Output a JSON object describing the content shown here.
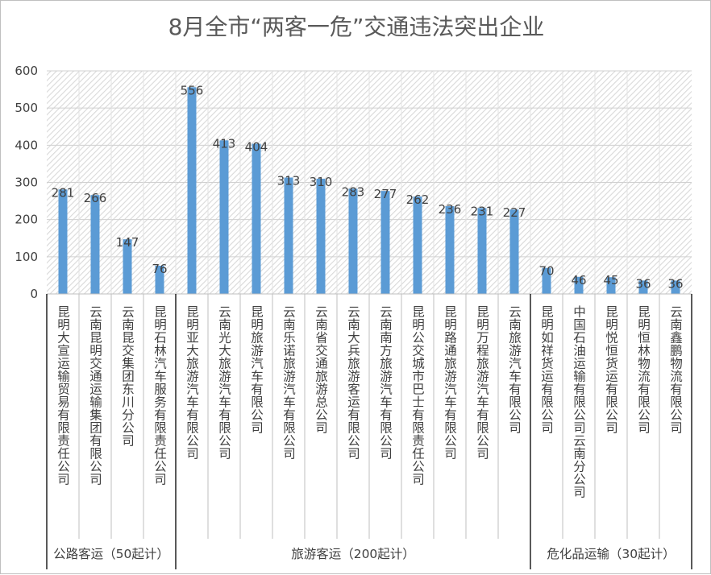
{
  "chart_data": {
    "type": "bar",
    "title": "8月全市“两客一危”交通违法突出企业",
    "xlabel": "",
    "ylabel": "",
    "ylim": [
      0,
      600
    ],
    "yticks": [
      0,
      100,
      200,
      300,
      400,
      500,
      600
    ],
    "grid": true,
    "legend": "none",
    "colors": {
      "bar": "#5b9bd5",
      "plot_bg_pattern": "#d9d9d9",
      "text": "#404040",
      "title": "#595959"
    },
    "categories": [
      "昆明大宣运输贸易有限责任公司",
      "云南昆明交通运输集团有限公司",
      "云南昆交集团东川分公司",
      "昆明石林汽车服务有限责任公司",
      "昆明亚大旅游汽车有限公司",
      "云南光大旅游汽车有限公司",
      "昆明旅游汽车有限公司",
      "云南乐诺旅游汽车有限公司",
      "云南省交通旅游总公司",
      "云南大兵旅游客运有限公司",
      "云南南方旅游汽车有限公司",
      "昆明公交城市巴士有限责任公司",
      "昆明路通旅游汽车有限公司",
      "昆明万程旅游汽车有限公司",
      "云南旅游汽车有限公司",
      "昆明如祥货运有限公司",
      "中国石油运输有限公司云南分公司",
      "昆明悦恒货运有限公司",
      "昆明恒林物流有限公司",
      "云南鑫鹏物流有限公司"
    ],
    "values": [
      281,
      266,
      147,
      76,
      556,
      413,
      404,
      313,
      310,
      283,
      277,
      262,
      236,
      231,
      227,
      70,
      46,
      45,
      36,
      36
    ],
    "groups": [
      {
        "label": "公路客运（50起计）",
        "start": 0,
        "end": 3
      },
      {
        "label": "旅游客运（200起计）",
        "start": 4,
        "end": 14
      },
      {
        "label": "危化品运输（30起计）",
        "start": 15,
        "end": 19
      }
    ]
  }
}
